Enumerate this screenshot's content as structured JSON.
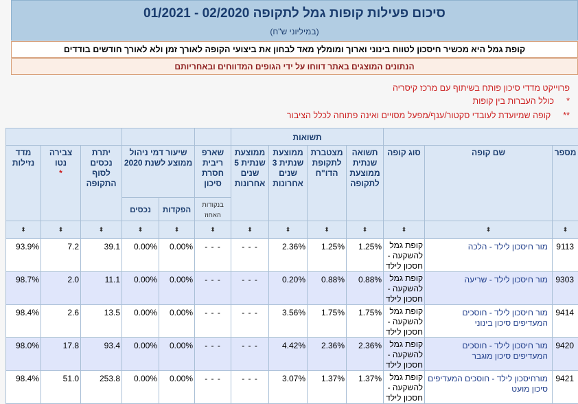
{
  "header": {
    "title": "סיכום פעילות קופות גמל לתקופה  02/2020 - 01/2021",
    "subtitle": "(במיליוני ש\"ח)"
  },
  "description": "קופת גמל היא מכשיר חיסכון לטווח בינוני וארוך ומומלץ מאד לבחון את ביצועי הקופה לאורך זמן ולא לאורך חודשים בודדים",
  "data_note": "הנתונים המוצגים באתר דווחו על ידי הגופים המדווחים ובאחריותם",
  "notes": {
    "project": "פרוייקט מדדי סיכון פותח בשיתוף עם מרכז קיסריה",
    "star1_mark": "*",
    "star1_text": "כולל העברות בין קופות",
    "star2_mark": "**",
    "star2_text": "קופה שמיועדת לעובדי סקטור/ענף/מפעל מסויים ואינה פתוחה לכלל הציבור"
  },
  "table": {
    "group_returns": "תשואות",
    "headers": {
      "id": "מספר",
      "name": "שם קופה",
      "type": "סוג קופה",
      "return_avg": "תשואה שנתית ממוצעת לתקופה",
      "return_cum": "מצטברת לתקופת הדו\"ח",
      "avg3": "ממוצעת שנתית 3 שנים אחרונות",
      "avg5": "ממוצעת שנתית 5 שנים אחרונות",
      "sharpe": "שארפ ריבית חסרת סיכון",
      "fee": "שיעור דמי ניהול ממוצע לשנת 2020",
      "balance": "יתרת נכסים לסוף התקופה",
      "net": "צבירה נטו",
      "net_star": "*",
      "liquidity": "מדד נזילות"
    },
    "sub_headers": {
      "sharpe_unit": "בנקודות האחוז",
      "deposits": "הפקדות",
      "assets": "נכסים"
    },
    "sort_symbol": "⬍",
    "rows": [
      {
        "id": "9113",
        "name": "מור חיסכון לילד - הלכה",
        "type": "קופת גמל להשקעה - חסכון לילד",
        "return_avg": "1.25%",
        "return_cum": "1.25%",
        "avg3": "2.36%",
        "avg5": "- - -",
        "sharpe": "- - -",
        "fee_deposits": "0.00%",
        "fee_assets": "0.00%",
        "balance": "39.1",
        "net": "7.2",
        "liquidity": "93.9%"
      },
      {
        "id": "9303",
        "name": "מור חיסכון לילד - שריעה",
        "type": "קופת גמל להשקעה - חסכון לילד",
        "return_avg": "0.88%",
        "return_cum": "0.88%",
        "avg3": "0.20%",
        "avg5": "- - -",
        "sharpe": "- - -",
        "fee_deposits": "0.00%",
        "fee_assets": "0.00%",
        "balance": "11.1",
        "net": "2.0",
        "liquidity": "98.7%"
      },
      {
        "id": "9414",
        "name": "מור חיסכון לילד - חוסכים המעדיפים סיכון בינוני",
        "type": "קופת גמל להשקעה - חסכון לילד",
        "return_avg": "1.75%",
        "return_cum": "1.75%",
        "avg3": "3.56%",
        "avg5": "- - -",
        "sharpe": "- - -",
        "fee_deposits": "0.00%",
        "fee_assets": "0.00%",
        "balance": "13.5",
        "net": "2.6",
        "liquidity": "98.4%"
      },
      {
        "id": "9420",
        "name": "מור חיסכון לילד - חוסכים המעדיפים סיכון מוגבר",
        "type": "קופת גמל להשקעה - חסכון לילד",
        "return_avg": "2.36%",
        "return_cum": "2.36%",
        "avg3": "4.42%",
        "avg5": "- - -",
        "sharpe": "- - -",
        "fee_deposits": "0.00%",
        "fee_assets": "0.00%",
        "balance": "93.4",
        "net": "17.8",
        "liquidity": "98.0%"
      },
      {
        "id": "9421",
        "name": "מורחיסכון לילד - חוסכים המעדיפים סיכון מועט",
        "type": "קופת גמל להשקעה - חסכון לילד",
        "return_avg": "1.37%",
        "return_cum": "1.37%",
        "avg3": "3.07%",
        "avg5": "- - -",
        "sharpe": "- - -",
        "fee_deposits": "0.00%",
        "fee_assets": "0.00%",
        "balance": "253.8",
        "net": "51.0",
        "liquidity": "98.4%"
      }
    ]
  }
}
